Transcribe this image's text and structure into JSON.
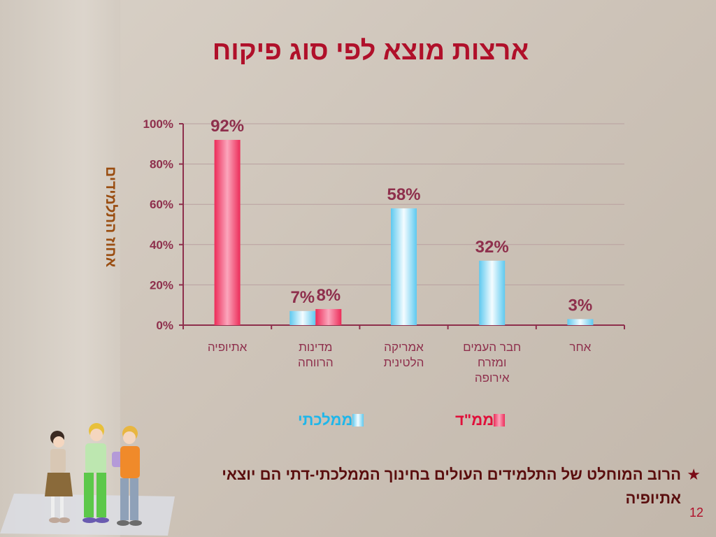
{
  "slide": {
    "title": "ארצות מוצא לפי סוג פיקוח",
    "bullet": "הרוב המוחלט של התלמידים העולים בחינוך הממלכתי-דתי הם יוצאי אתיופיה",
    "slide_number": "12"
  },
  "chart_data": {
    "type": "bar",
    "ylabel": "אחוז התלמידים",
    "xlabel": "",
    "ylim": [
      0,
      100
    ],
    "yticks": [
      0,
      20,
      40,
      60,
      80,
      100
    ],
    "ytick_labels": [
      "0%",
      "20%",
      "40%",
      "60%",
      "80%",
      "100%"
    ],
    "categories": [
      "אתיופיה",
      "מדינות הרווחה",
      "אמריקה הלטינית",
      "חבר העמים ומזרח אירופה",
      "אחר"
    ],
    "category_lines": [
      [
        "אתיופיה"
      ],
      [
        "מדינות",
        "הרווחה"
      ],
      [
        "אמריקה",
        "הלטינית"
      ],
      [
        "חבר העמים",
        "ומזרח",
        "אירופה"
      ],
      [
        "אחר"
      ]
    ],
    "series": [
      {
        "name": "ממלכתי",
        "color": "#7fd4f3",
        "values": [
          null,
          7,
          58,
          32,
          3
        ],
        "labels": [
          null,
          "7%",
          "58%",
          "32%",
          "3%"
        ]
      },
      {
        "name": "ממ\"ד",
        "color": "#f2557a",
        "values": [
          92,
          8,
          null,
          null,
          null
        ],
        "labels": [
          "92%",
          "8%",
          null,
          null,
          null
        ]
      }
    ],
    "legend_position": "bottom",
    "grid": true
  }
}
